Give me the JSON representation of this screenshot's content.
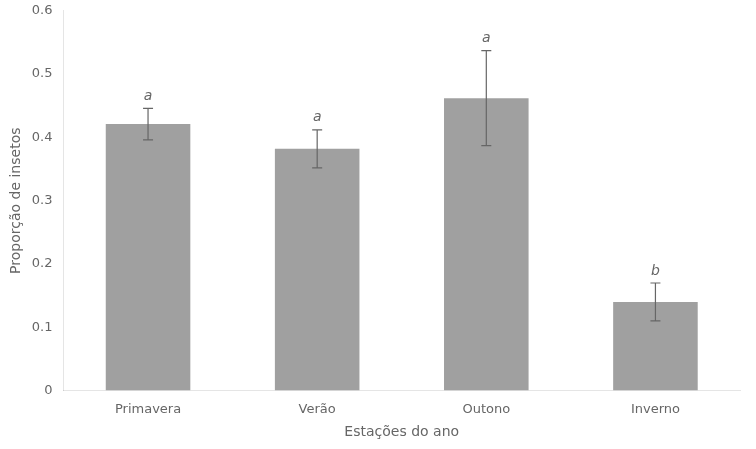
{
  "chart_data": {
    "type": "bar",
    "categories": [
      "Primavera",
      "Verão",
      "Outono",
      "Inverno"
    ],
    "values": [
      0.421,
      0.382,
      0.462,
      0.14
    ],
    "errors": [
      0.025,
      0.03,
      0.075,
      0.03
    ],
    "annotations": [
      "a",
      "a",
      "a",
      "b"
    ],
    "color": "#a0a0a0",
    "xlabel": "Estações do ano",
    "ylabel": "Proporção de insetos",
    "ylim": [
      0,
      0.6
    ],
    "yticks": [
      0,
      0.1,
      0.2,
      0.3,
      0.4,
      0.5,
      0.6
    ],
    "grid": false
  }
}
